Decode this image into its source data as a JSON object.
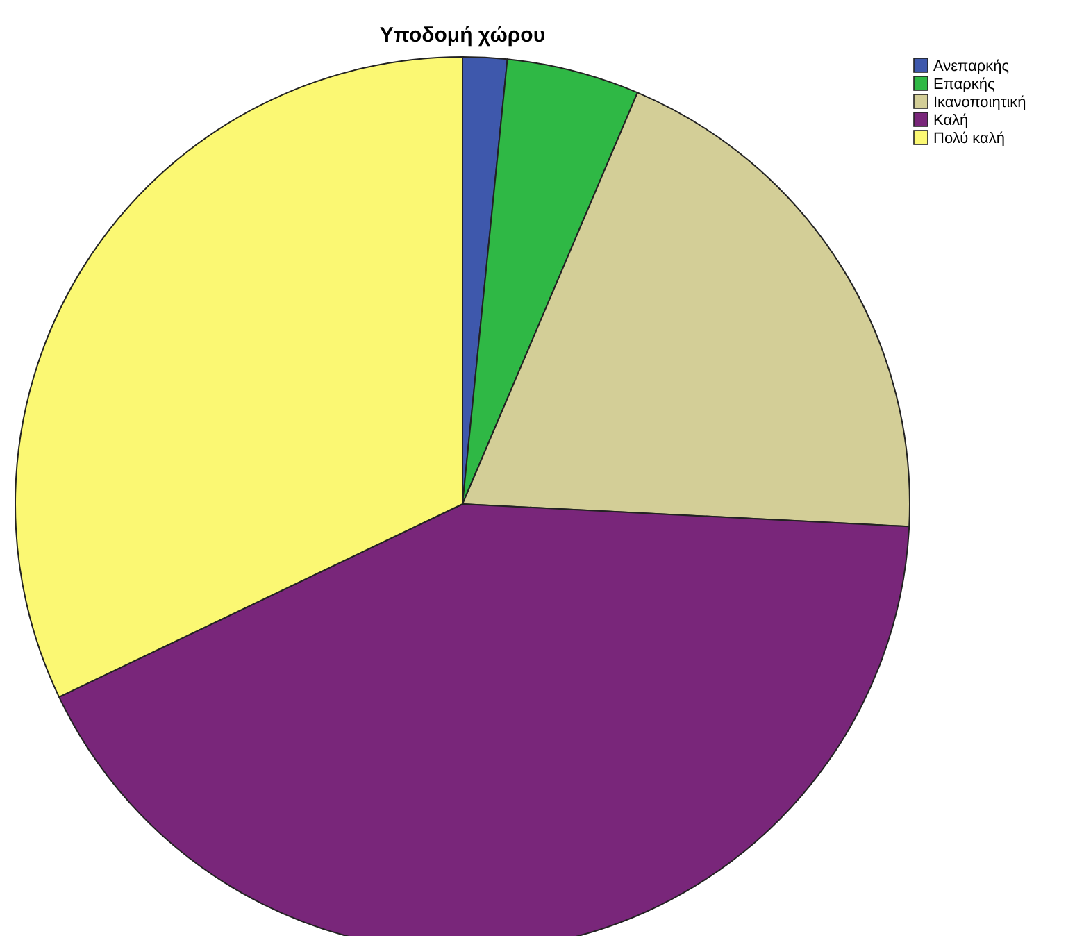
{
  "chart_data": {
    "type": "pie",
    "title": "Υποδομή χώρου",
    "categories": [
      "Ανεπαρκής",
      "Επαρκής",
      "Ικανοποιητική",
      "Καλή",
      "Πολύ καλή"
    ],
    "values": [
      1.6,
      4.8,
      19.4,
      42.1,
      32.1
    ],
    "colors": [
      "#3e58ac",
      "#2fb845",
      "#d3ce97",
      "#79267a",
      "#fbf873"
    ],
    "legend": "top right"
  }
}
